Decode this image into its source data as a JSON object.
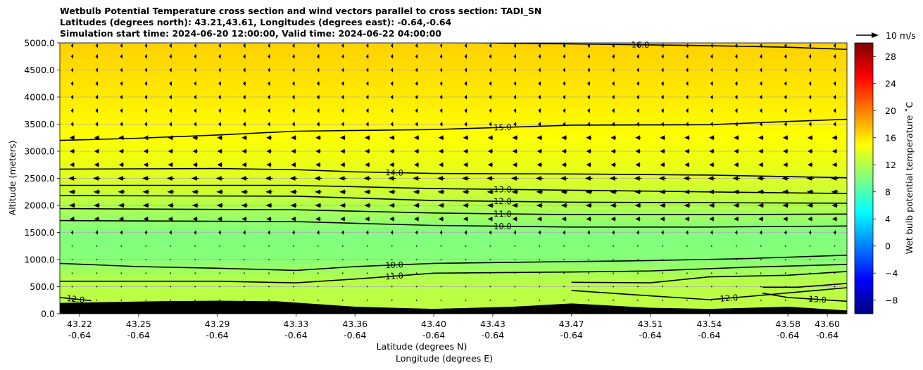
{
  "title_lines": [
    "Wetbulb Potential Temperature cross section and wind vectors parallel to cross section: TADI_SN",
    "Latitudes (degrees north): 43.21,43.61, Longitudes (degrees east): -0.64,-0.64",
    "Simulation start time: 2024-06-20 12:00:00, Valid time: 2024-06-22 04:00:00"
  ],
  "quiver_key_label": "10 m/s",
  "colors": {
    "terrain": "#000000",
    "grid": "#b0b0b0",
    "contour": "#000000"
  },
  "chart_data": {
    "type": "heatmap",
    "xlabel": "Latitude (degrees N)",
    "xlabel2": "Longitude (degrees E)",
    "ylabel": "Altitude (meters)",
    "ylim": [
      0,
      5000
    ],
    "x_ticks": [
      {
        "lat": "43.22",
        "lon": "-0.64"
      },
      {
        "lat": "43.25",
        "lon": "-0.64"
      },
      {
        "lat": "43.29",
        "lon": "-0.64"
      },
      {
        "lat": "43.33",
        "lon": "-0.64"
      },
      {
        "lat": "43.36",
        "lon": "-0.64"
      },
      {
        "lat": "43.40",
        "lon": "-0.64"
      },
      {
        "lat": "43.43",
        "lon": "-0.64"
      },
      {
        "lat": "43.47",
        "lon": "-0.64"
      },
      {
        "lat": "43.51",
        "lon": "-0.64"
      },
      {
        "lat": "43.54",
        "lon": "-0.64"
      },
      {
        "lat": "43.58",
        "lon": "-0.64"
      },
      {
        "lat": "43.60",
        "lon": "-0.64"
      }
    ],
    "y_ticks": [
      "0.0",
      "500.0",
      "1000.0",
      "1500.0",
      "2000.0",
      "2500.0",
      "3000.0",
      "3500.0",
      "4000.0",
      "4500.0",
      "5000.0"
    ],
    "grid": "horizontal",
    "colorbar": {
      "label": "Wet bulb potential temperature $^\\circ$C",
      "label_display": "Wet bulb potential temperature ˚C",
      "range": [
        -10,
        30
      ],
      "ticks": [
        "−8",
        "−4",
        "0",
        "4",
        "8",
        "12",
        "16",
        "20",
        "24",
        "28"
      ],
      "colormap": "jet"
    },
    "field_profile": [
      {
        "alt": 0,
        "value": 12.5
      },
      {
        "alt": 600,
        "value": 12.2
      },
      {
        "alt": 1000,
        "value": 10.3
      },
      {
        "alt": 1500,
        "value": 10.0
      },
      {
        "alt": 1800,
        "value": 11.2
      },
      {
        "alt": 2200,
        "value": 12.8
      },
      {
        "alt": 2600,
        "value": 14.0
      },
      {
        "alt": 3300,
        "value": 15.0
      },
      {
        "alt": 4000,
        "value": 15.8
      },
      {
        "alt": 4600,
        "value": 16.4
      },
      {
        "alt": 5000,
        "value": 16.8
      }
    ],
    "terrain_altitude_m": [
      {
        "lat": 43.21,
        "alt": 200
      },
      {
        "lat": 43.26,
        "alt": 230
      },
      {
        "lat": 43.29,
        "alt": 240
      },
      {
        "lat": 43.32,
        "alt": 230
      },
      {
        "lat": 43.36,
        "alt": 130
      },
      {
        "lat": 43.4,
        "alt": 90
      },
      {
        "lat": 43.44,
        "alt": 130
      },
      {
        "lat": 43.47,
        "alt": 190
      },
      {
        "lat": 43.51,
        "alt": 110
      },
      {
        "lat": 43.54,
        "alt": 90
      },
      {
        "lat": 43.58,
        "alt": 130
      },
      {
        "lat": 43.61,
        "alt": 60
      }
    ],
    "contours": [
      {
        "label": "16.0",
        "points": [
          [
            43.21,
            5030
          ],
          [
            43.41,
            5010
          ],
          [
            43.47,
            4980
          ],
          [
            43.54,
            4950
          ],
          [
            43.58,
            4920
          ],
          [
            43.61,
            4880
          ]
        ]
      },
      {
        "label": "15.0",
        "points": [
          [
            43.21,
            3200
          ],
          [
            43.25,
            3240
          ],
          [
            43.29,
            3300
          ],
          [
            43.33,
            3370
          ],
          [
            43.4,
            3400
          ],
          [
            43.47,
            3480
          ],
          [
            43.54,
            3490
          ],
          [
            43.58,
            3550
          ],
          [
            43.61,
            3590
          ]
        ]
      },
      {
        "label": "14.0",
        "points": [
          [
            43.21,
            2670
          ],
          [
            43.29,
            2680
          ],
          [
            43.33,
            2660
          ],
          [
            43.36,
            2620
          ],
          [
            43.4,
            2590
          ],
          [
            43.47,
            2580
          ],
          [
            43.54,
            2560
          ],
          [
            43.61,
            2510
          ]
        ]
      },
      {
        "label": "13.0",
        "points": [
          [
            43.21,
            2370
          ],
          [
            43.33,
            2370
          ],
          [
            43.4,
            2310
          ],
          [
            43.47,
            2280
          ],
          [
            43.54,
            2250
          ],
          [
            43.61,
            2220
          ]
        ]
      },
      {
        "label": "12.0",
        "points": [
          [
            43.21,
            2180
          ],
          [
            43.33,
            2170
          ],
          [
            43.4,
            2090
          ],
          [
            43.47,
            2060
          ],
          [
            43.54,
            2050
          ],
          [
            43.61,
            2040
          ]
        ]
      },
      {
        "label": "11.0",
        "points": [
          [
            43.21,
            1940
          ],
          [
            43.33,
            1920
          ],
          [
            43.4,
            1860
          ],
          [
            43.47,
            1830
          ],
          [
            43.54,
            1830
          ],
          [
            43.61,
            1840
          ]
        ]
      },
      {
        "label": "10.0",
        "points": [
          [
            43.21,
            1720
          ],
          [
            43.33,
            1700
          ],
          [
            43.4,
            1630
          ],
          [
            43.47,
            1600
          ],
          [
            43.54,
            1600
          ],
          [
            43.61,
            1620
          ]
        ]
      },
      {
        "label": "10.0",
        "points": [
          [
            43.21,
            930
          ],
          [
            43.25,
            870
          ],
          [
            43.29,
            840
          ],
          [
            43.33,
            800
          ],
          [
            43.36,
            870
          ],
          [
            43.4,
            930
          ],
          [
            43.44,
            950
          ],
          [
            43.51,
            980
          ],
          [
            43.56,
            1020
          ],
          [
            43.61,
            1080
          ]
        ]
      },
      {
        "label": "11.0",
        "points": [
          [
            43.21,
            600
          ],
          [
            43.25,
            600
          ],
          [
            43.29,
            600
          ],
          [
            43.33,
            570
          ],
          [
            43.36,
            640
          ],
          [
            43.4,
            750
          ],
          [
            43.47,
            770
          ],
          [
            43.51,
            790
          ],
          [
            43.56,
            860
          ],
          [
            43.61,
            910
          ]
        ]
      },
      {
        "label": "12.0",
        "points": [
          [
            43.21,
            300
          ],
          [
            43.226,
            240
          ]
        ]
      },
      {
        "label": "12.0",
        "points": [
          [
            43.47,
            430
          ],
          [
            43.51,
            330
          ],
          [
            43.54,
            260
          ],
          [
            43.56,
            320
          ],
          [
            43.61,
            480
          ]
        ]
      },
      {
        "label": "",
        "points": [
          [
            43.47,
            580
          ],
          [
            43.51,
            570
          ],
          [
            43.54,
            680
          ],
          [
            43.58,
            710
          ],
          [
            43.61,
            780
          ]
        ]
      },
      {
        "label": "13.0",
        "points": [
          [
            43.567,
            380
          ],
          [
            43.58,
            300
          ],
          [
            43.61,
            230
          ]
        ]
      },
      {
        "label": "",
        "points": [
          [
            43.567,
            490
          ],
          [
            43.585,
            490
          ],
          [
            43.61,
            560
          ]
        ]
      }
    ],
    "wind_vectors": {
      "levels_m": [
        4950,
        4750,
        4500,
        4250,
        4000,
        3750,
        3500,
        3250,
        3000,
        2750,
        2500,
        2250,
        2000,
        1750,
        1500,
        1250,
        1000,
        750,
        500,
        250
      ],
      "columns": 32,
      "u_ms": [
        -1.5,
        -1.5,
        -1.5,
        -1.6,
        -1.6,
        -1.7,
        -1.8,
        -3.2,
        -3.0,
        -3.0,
        -4.5,
        -4.0,
        -3.8,
        -3.0,
        -1.5,
        0,
        0,
        0,
        0,
        0
      ]
    },
    "quiver_key": {
      "speed_ms": 10,
      "label": "10 m/s"
    }
  }
}
